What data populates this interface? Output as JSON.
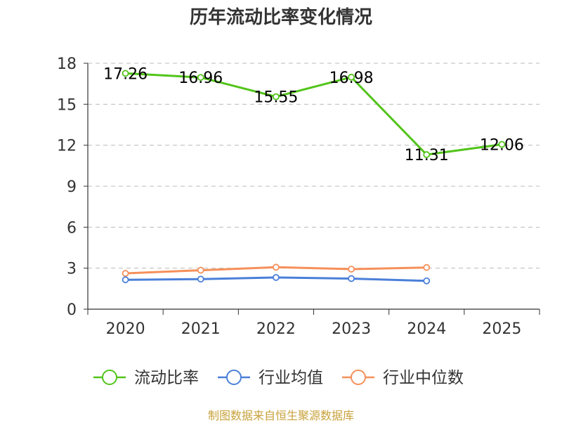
{
  "chart_data": {
    "type": "line",
    "title": "历年流动比率变化情况",
    "categories": [
      "2020",
      "2021",
      "2022",
      "2023",
      "2024",
      "2025"
    ],
    "ylim": [
      0,
      18
    ],
    "yticks": [
      0,
      3,
      6,
      9,
      12,
      15,
      18
    ],
    "grid": true,
    "legend_position": "bottom",
    "series": [
      {
        "name": "流动比率",
        "color": "#52c41a",
        "values": [
          17.26,
          16.96,
          15.55,
          16.98,
          11.31,
          12.06
        ],
        "show_labels": true
      },
      {
        "name": "行业均值",
        "color": "#4a7fd9",
        "values": [
          2.15,
          2.2,
          2.32,
          2.24,
          2.07,
          null
        ],
        "show_labels": false
      },
      {
        "name": "行业中位数",
        "color": "#f5905a",
        "values": [
          2.62,
          2.85,
          3.07,
          2.93,
          3.05,
          null
        ],
        "show_labels": false
      }
    ]
  },
  "source": "制图数据来自恒生聚源数据库"
}
